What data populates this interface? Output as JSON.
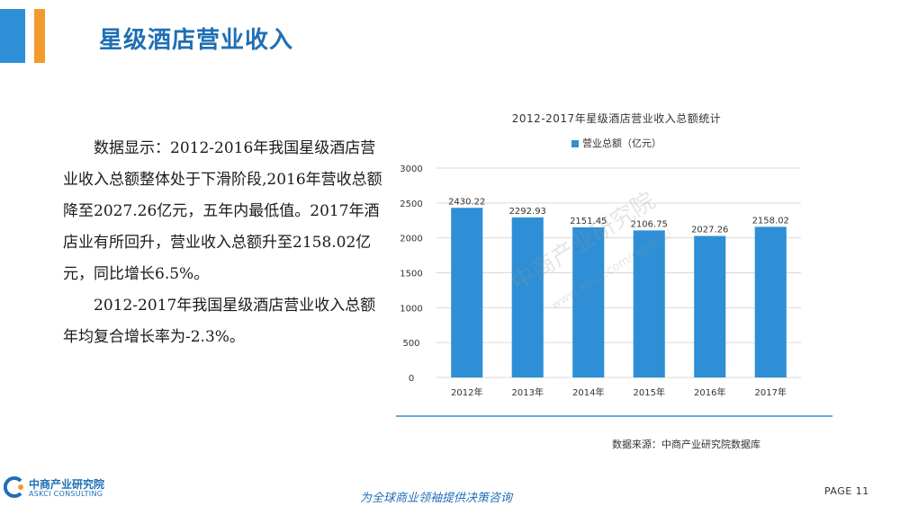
{
  "header": {
    "title": "星级酒店营业收入"
  },
  "body": {
    "paragraph1": "数据显示：2012-2016年我国星级酒店营业收入总额整体处于下滑阶段,2016年营收总额降至2027.26亿元，五年内最低值。2017年酒店业有所回升，营业收入总额升至2158.02亿元，同比增长6.5%。",
    "paragraph2": "2012-2017年我国星级酒店营业收入总额年均复合增长率为-2.3%。"
  },
  "chart_data": {
    "type": "bar",
    "title": "2012-2017年星级酒店营业收入总额统计",
    "categories": [
      "2012年",
      "2013年",
      "2014年",
      "2015年",
      "2016年",
      "2017年"
    ],
    "series": [
      {
        "name": "营业总额（亿元）",
        "values": [
          2430.22,
          2292.93,
          2151.45,
          2106.75,
          2027.26,
          2158.02
        ]
      }
    ],
    "data_labels": [
      "2430.22",
      "2292.93",
      "2151.45",
      "2106.75",
      "2027.26",
      "2158.02"
    ],
    "yticks": [
      "0",
      "500",
      "1000",
      "1500",
      "2000",
      "2500",
      "3000"
    ],
    "ylim": [
      0,
      3000
    ],
    "xlabel": "",
    "ylabel": "",
    "grid": true,
    "legend_position": "top",
    "color": "#2e8fd6"
  },
  "watermark": {
    "text": "中商产业研究院",
    "url": "www.askci.com/reports/"
  },
  "footer": {
    "source": "数据来源：中商产业研究院数据库",
    "logo_cn": "中商产业研究院",
    "logo_en": "ASKCI CONSULTING",
    "slogan": "为全球商业领袖提供决策咨询",
    "page": "PAGE  11"
  }
}
